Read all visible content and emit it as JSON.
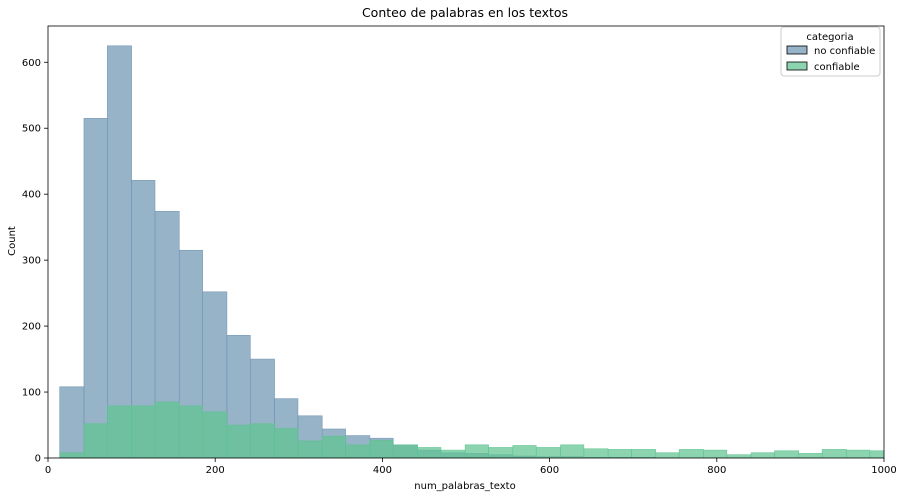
{
  "chart_data": {
    "type": "bar",
    "title": "Conteo de palabras en los textos",
    "xlabel": "num_palabras_texto",
    "ylabel": "Count",
    "xlim": [
      0,
      1000
    ],
    "ylim": [
      0,
      655
    ],
    "xticks": [
      0,
      200,
      400,
      600,
      800,
      1000
    ],
    "yticks": [
      0,
      100,
      200,
      300,
      400,
      500,
      600
    ],
    "bin_edges": [
      14,
      43,
      71,
      100,
      128,
      157,
      185,
      214,
      242,
      271,
      299,
      328,
      356,
      385,
      413,
      442,
      470,
      499,
      527,
      556,
      584,
      613,
      641,
      670,
      698,
      727,
      755,
      784,
      812,
      841,
      869,
      898,
      926,
      955,
      983,
      1012
    ],
    "legend": {
      "title": "categoria",
      "placement": "top-right"
    },
    "series": [
      {
        "name": "no confiable",
        "color": "#6f95b3",
        "values": [
          108,
          515,
          625,
          421,
          374,
          315,
          252,
          186,
          150,
          90,
          64,
          44,
          34,
          30,
          20,
          12,
          8,
          7,
          5,
          3,
          2,
          2,
          1,
          1,
          1,
          0,
          0,
          0,
          0,
          0,
          0,
          0,
          0,
          0,
          0
        ]
      },
      {
        "name": "confiable",
        "color": "#5fc392",
        "values": [
          8,
          52,
          79,
          79,
          85,
          79,
          70,
          50,
          52,
          45,
          26,
          33,
          20,
          27,
          20,
          16,
          12,
          20,
          16,
          19,
          16,
          20,
          14,
          13,
          13,
          8,
          13,
          12,
          5,
          8,
          11,
          7,
          13,
          12,
          11
        ]
      }
    ]
  }
}
